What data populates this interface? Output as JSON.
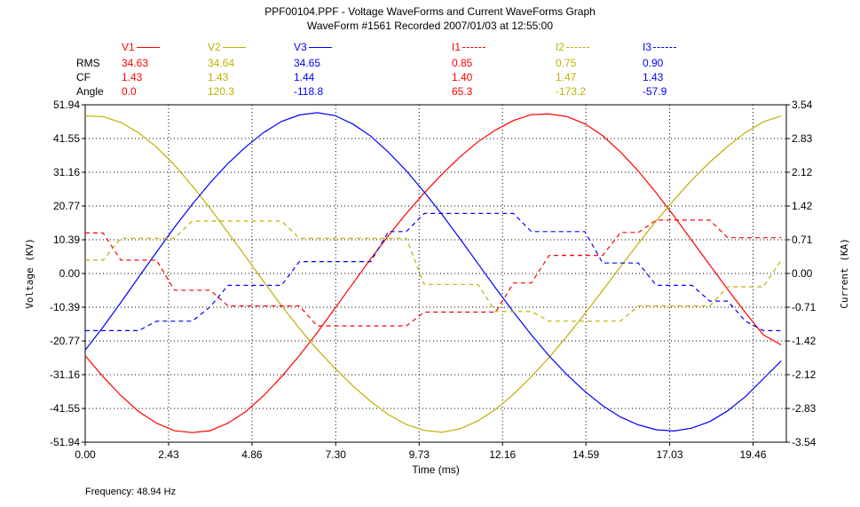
{
  "chart_data": {
    "type": "line",
    "title": "PPF00104.PPF - Voltage WaveForms and Current WaveForms Graph",
    "subtitle": "WaveForm #1561 Recorded 2007/01/03 at 12:55:00",
    "xlabel": "Time (ms)",
    "ylabel": "Voltage (KV)",
    "y2label": "Current (KA)",
    "xlim": [
      0,
      20.43
    ],
    "ylim": [
      -51.94,
      51.94
    ],
    "y2lim": [
      -3.54,
      3.54
    ],
    "x_ticks": [
      "0.00",
      "2.43",
      "4.86",
      "7.30",
      "9.73",
      "12.16",
      "14.59",
      "17.03",
      "19.46"
    ],
    "y_ticks": [
      "51.94",
      "41.55",
      "31.16",
      "20.77",
      "10.39",
      "0.00",
      "-10.39",
      "-20.77",
      "-31.16",
      "-41.55",
      "-51.94"
    ],
    "y2_ticks": [
      "3.54",
      "2.83",
      "2.12",
      "1.42",
      "0.71",
      "0.00",
      "-0.71",
      "-1.42",
      "-2.12",
      "-2.83",
      "-3.54"
    ],
    "grid": true,
    "footer": "Frequency: 48.94 Hz",
    "table_row_labels": [
      "RMS",
      "CF",
      "Angle"
    ],
    "x": [
      0.0,
      0.52,
      1.04,
      1.56,
      2.08,
      2.6,
      3.12,
      3.64,
      4.16,
      4.68,
      5.2,
      5.72,
      6.24,
      6.76,
      7.28,
      7.8,
      8.32,
      8.84,
      9.36,
      9.88,
      10.4,
      10.92,
      11.44,
      11.96,
      12.48,
      13.0,
      13.52,
      14.04,
      14.56,
      15.08,
      15.6,
      16.12,
      16.64,
      17.16,
      17.68,
      18.2,
      18.72,
      19.24,
      19.76,
      20.28
    ],
    "series": [
      {
        "name": "V1",
        "axis": "left",
        "dash": false,
        "color": "#ff0000",
        "rms": "34.63",
        "cf": "1.43",
        "angle": "0.0",
        "values": [
          -25.3,
          -31.8,
          -37.6,
          -42.5,
          -46.1,
          -48.4,
          -49.0,
          -48.4,
          -46.1,
          -42.5,
          -37.6,
          -31.8,
          -25.3,
          -18.2,
          -10.7,
          -3.1,
          4.5,
          11.7,
          18.5,
          24.8,
          30.6,
          35.9,
          40.5,
          44.2,
          47.1,
          48.9,
          49.1,
          48.3,
          46.1,
          42.4,
          37.4,
          31.5,
          24.8,
          17.6,
          10.1,
          2.6,
          -4.9,
          -12.1,
          -18.9,
          -22.0
        ]
      },
      {
        "name": "V2",
        "axis": "left",
        "dash": false,
        "color": "#c0b000",
        "rms": "34.64",
        "cf": "1.43",
        "angle": "120.3",
        "values": [
          48.5,
          48.3,
          46.5,
          43.3,
          38.9,
          33.4,
          27.0,
          20.0,
          12.6,
          5.1,
          -2.5,
          -9.9,
          -16.9,
          -23.4,
          -29.2,
          -34.6,
          -39.4,
          -43.5,
          -46.5,
          -48.3,
          -48.9,
          -47.8,
          -45.4,
          -41.8,
          -37.2,
          -31.8,
          -25.8,
          -19.3,
          -12.4,
          -5.2,
          2.1,
          9.3,
          16.2,
          22.7,
          28.8,
          34.3,
          39.1,
          43.4,
          46.7,
          48.5
        ]
      },
      {
        "name": "V3",
        "axis": "left",
        "dash": false,
        "color": "#0000ff",
        "rms": "34.65",
        "cf": "1.44",
        "angle": "-118.8",
        "values": [
          -23.6,
          -16.5,
          -8.9,
          -1.1,
          6.6,
          14.2,
          21.3,
          27.9,
          33.9,
          39.0,
          43.4,
          46.8,
          48.8,
          49.5,
          48.6,
          46.0,
          42.3,
          37.3,
          31.6,
          25.1,
          18.1,
          10.7,
          3.1,
          -4.5,
          -11.9,
          -18.9,
          -25.4,
          -31.2,
          -36.3,
          -40.7,
          -44.2,
          -46.6,
          -48.1,
          -48.5,
          -47.6,
          -45.6,
          -42.3,
          -37.9,
          -32.4,
          -26.9
        ]
      },
      {
        "name": "I1",
        "axis": "right",
        "dash": true,
        "color": "#ff0000",
        "rms": "0.85",
        "cf": "1.40",
        "angle": "65.3",
        "values": [
          0.85,
          0.85,
          0.28,
          0.28,
          0.28,
          -0.35,
          -0.35,
          -0.35,
          -0.68,
          -0.68,
          -0.68,
          -0.68,
          -0.68,
          -1.1,
          -1.1,
          -1.1,
          -1.1,
          -1.1,
          -1.1,
          -0.81,
          -0.81,
          -0.81,
          -0.81,
          -0.81,
          -0.2,
          -0.2,
          0.38,
          0.38,
          0.38,
          0.38,
          0.86,
          0.86,
          1.12,
          1.12,
          1.12,
          1.12,
          0.75,
          0.75,
          0.75,
          0.75
        ]
      },
      {
        "name": "I2",
        "axis": "right",
        "dash": true,
        "color": "#c0b000",
        "rms": "0.75",
        "cf": "1.47",
        "angle": "-173.2",
        "values": [
          0.28,
          0.28,
          0.74,
          0.74,
          0.74,
          0.74,
          1.1,
          1.1,
          1.1,
          1.1,
          1.1,
          1.1,
          0.74,
          0.74,
          0.74,
          0.74,
          0.74,
          0.74,
          0.74,
          -0.23,
          -0.23,
          -0.23,
          -0.23,
          -0.8,
          -0.8,
          -0.8,
          -1.0,
          -1.0,
          -1.0,
          -1.0,
          -1.0,
          -0.68,
          -0.68,
          -0.68,
          -0.68,
          -0.68,
          -0.28,
          -0.28,
          -0.28,
          0.28
        ]
      },
      {
        "name": "I3",
        "axis": "right",
        "dash": true,
        "color": "#0000ff",
        "rms": "0.90",
        "cf": "1.43",
        "angle": "-57.9",
        "values": [
          -1.2,
          -1.2,
          -1.2,
          -1.2,
          -1.0,
          -1.0,
          -1.0,
          -0.7,
          -0.25,
          -0.25,
          -0.25,
          -0.25,
          0.25,
          0.25,
          0.25,
          0.25,
          0.25,
          0.88,
          0.88,
          1.26,
          1.26,
          1.26,
          1.26,
          1.26,
          1.26,
          0.88,
          0.88,
          0.88,
          0.88,
          0.22,
          0.22,
          0.22,
          -0.25,
          -0.25,
          -0.25,
          -0.58,
          -0.58,
          -1.0,
          -1.2,
          -1.2
        ]
      }
    ]
  }
}
